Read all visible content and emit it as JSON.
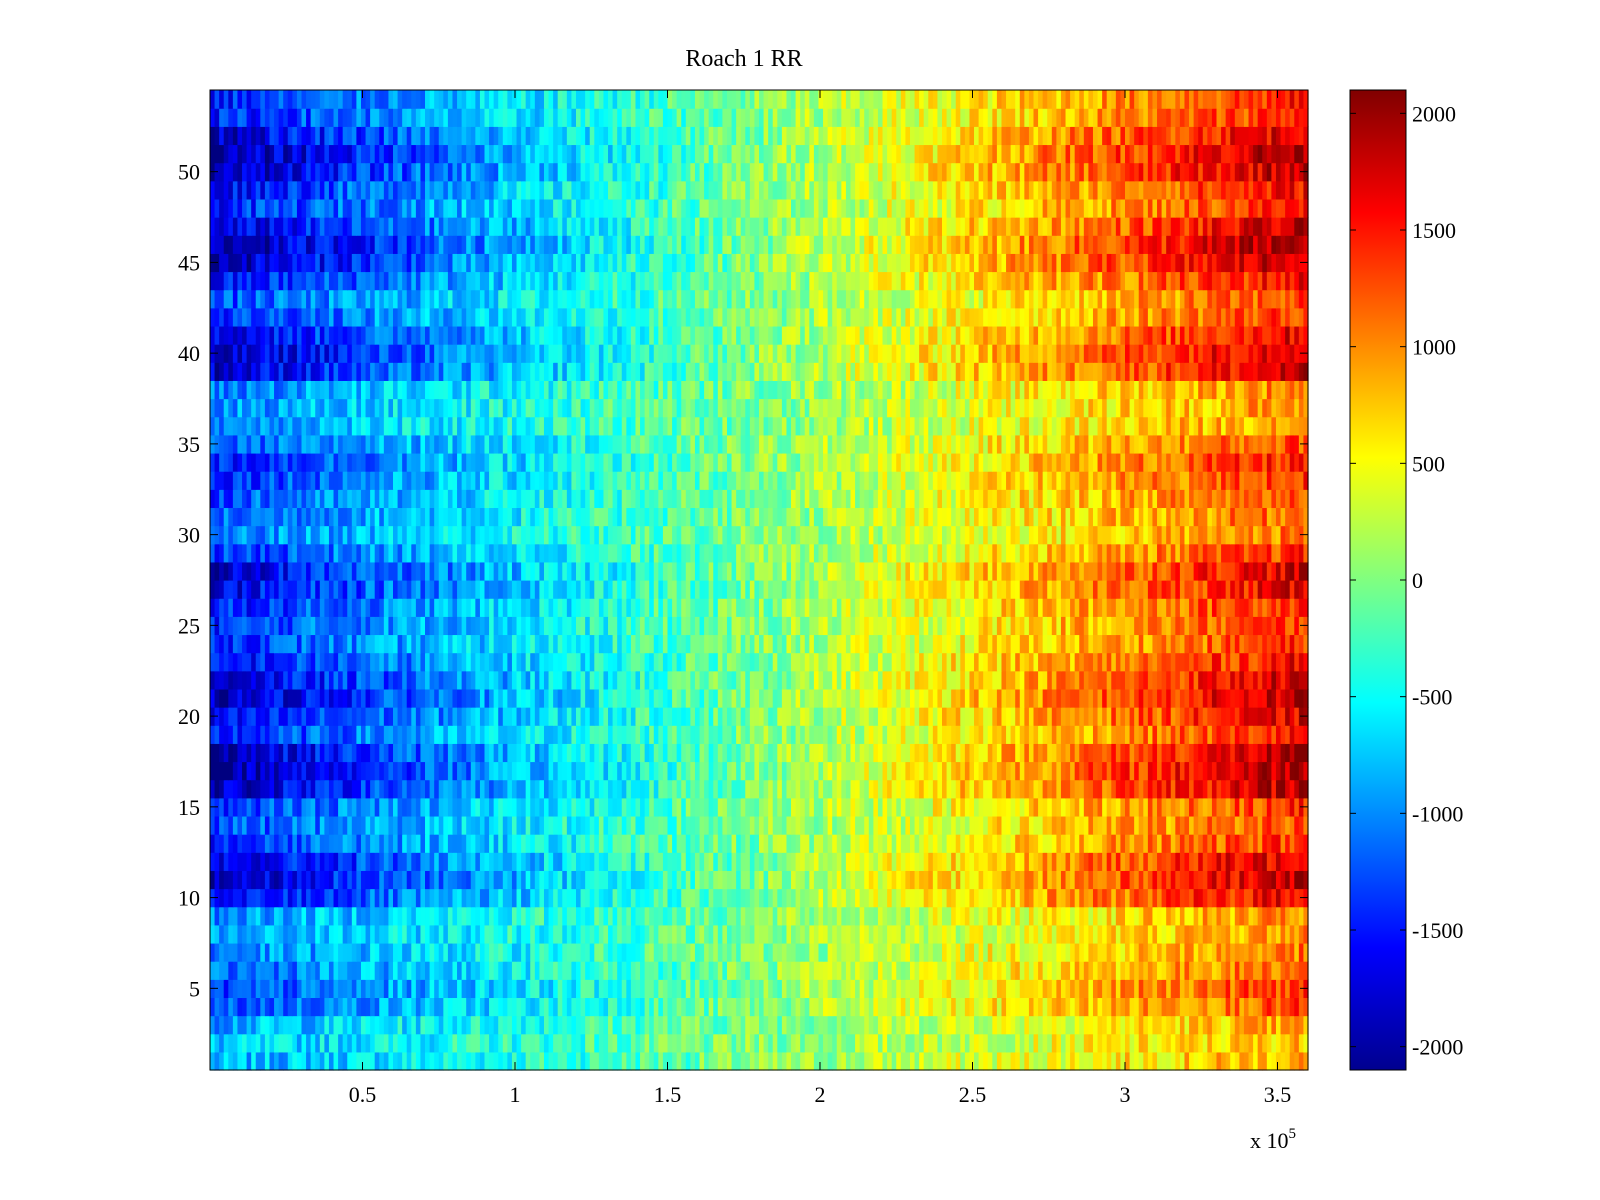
{
  "chart_data": {
    "type": "heatmap",
    "title": "Roach 1 RR",
    "xlabel": "",
    "ylabel": "",
    "x_range": [
      1,
      360000
    ],
    "y_range": [
      1,
      54
    ],
    "n_rows": 54,
    "x_tick_values": [
      50000,
      100000,
      150000,
      200000,
      250000,
      300000,
      350000
    ],
    "x_tick_labels": [
      "0.5",
      "1",
      "1.5",
      "2",
      "2.5",
      "3",
      "3.5"
    ],
    "x_exponent_label": "x 10",
    "x_exponent_power": "5",
    "y_tick_values": [
      5,
      10,
      15,
      20,
      25,
      30,
      35,
      40,
      45,
      50
    ],
    "y_tick_labels": [
      "5",
      "10",
      "15",
      "20",
      "25",
      "30",
      "35",
      "40",
      "45",
      "50"
    ],
    "colormap": "jet",
    "color_range": [
      -2100,
      2100
    ],
    "colorbar_tick_values": [
      2000,
      1500,
      1000,
      500,
      0,
      -500,
      -1000,
      -1500,
      -2000
    ],
    "colorbar_tick_labels": [
      "2000",
      "1500",
      "1000",
      "500",
      "0",
      "-500",
      "-1000",
      "-1500",
      "-2000"
    ],
    "description_of_values": "Each row runs from strongly negative (blue, about -1500 to -2000) at low x to strongly positive (red, about +1500 to +2000) at high x, crossing zero near x = 1.8e5. Row amplitude varies; rows with amplitude factor listed here.",
    "row_amplitude": [
      0.45,
      0.4,
      0.45,
      0.65,
      0.7,
      0.6,
      0.55,
      0.5,
      0.5,
      0.85,
      0.95,
      0.9,
      0.7,
      0.65,
      0.7,
      0.95,
      1.0,
      0.95,
      0.75,
      0.85,
      0.95,
      0.9,
      0.8,
      0.7,
      0.7,
      0.75,
      0.85,
      0.9,
      0.7,
      0.55,
      0.6,
      0.65,
      0.7,
      0.75,
      0.65,
      0.5,
      0.5,
      0.55,
      0.9,
      0.95,
      0.85,
      0.7,
      0.65,
      0.8,
      0.95,
      1.0,
      0.9,
      0.75,
      0.8,
      0.95,
      1.0,
      0.9,
      0.75,
      0.75
    ]
  }
}
